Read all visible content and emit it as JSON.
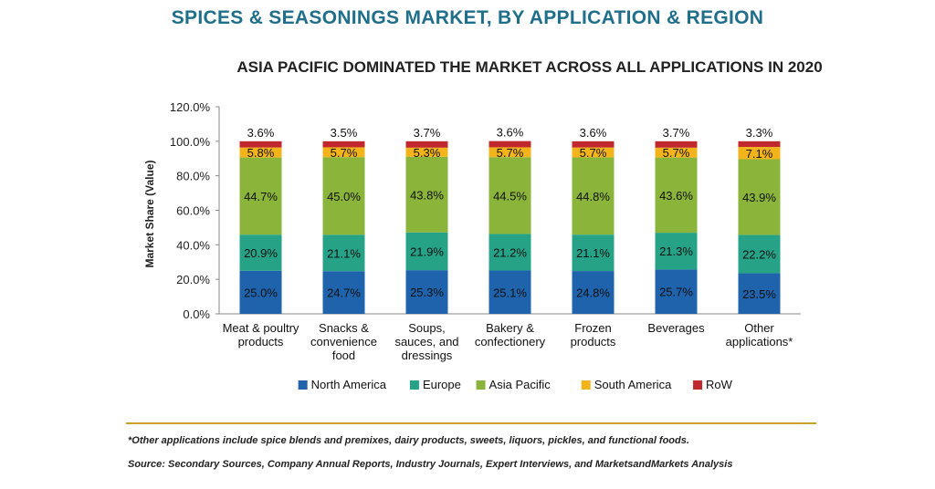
{
  "title": "SPICES & SEASONINGS MARKET, BY APPLICATION & REGION",
  "subtitle": "ASIA PACIFIC DOMINATED THE MARKET ACROSS ALL APPLICATIONS IN 2020",
  "footnote": "*Other applications include spice blends and premixes, dairy products, sweets, liquors, pickles, and functional foods.",
  "source": "Source: Secondary Sources, Company Annual Reports, Industry Journals, Expert Interviews, and MarketsandMarkets Analysis",
  "chart_data": {
    "type": "bar",
    "stacked": true,
    "ylabel": "Market Share (Value)",
    "xlabel": "",
    "ylim": [
      0,
      120
    ],
    "yticks": [
      "0.0%",
      "20.0%",
      "40.0%",
      "60.0%",
      "80.0%",
      "100.0%",
      "120.0%"
    ],
    "grid": false,
    "legend_position": "bottom",
    "categories": [
      [
        "Meat & poultry",
        "products"
      ],
      [
        "Snacks &",
        "convenience",
        "food"
      ],
      [
        "Soups,",
        "sauces, and",
        "dressings"
      ],
      [
        "Bakery &",
        "confectionery"
      ],
      [
        "Frozen",
        "products"
      ],
      [
        "Beverages"
      ],
      [
        "Other",
        "applications*"
      ]
    ],
    "series": [
      {
        "name": "North America",
        "color": "#1f63ad",
        "values": [
          25.0,
          24.7,
          25.3,
          25.1,
          24.8,
          25.7,
          23.5
        ],
        "labels": [
          "25.0%",
          "24.7%",
          "25.3%",
          "25.1%",
          "24.8%",
          "25.7%",
          "23.5%"
        ]
      },
      {
        "name": "Europe",
        "color": "#26a387",
        "values": [
          20.9,
          21.1,
          21.9,
          21.2,
          21.1,
          21.3,
          22.2
        ],
        "labels": [
          "20.9%",
          "21.1%",
          "21.9%",
          "21.2%",
          "21.1%",
          "21.3%",
          "22.2%"
        ]
      },
      {
        "name": "Asia Pacific",
        "color": "#8ab43a",
        "values": [
          44.7,
          45.0,
          43.8,
          44.5,
          44.8,
          43.6,
          43.9
        ],
        "labels": [
          "44.7%",
          "45.0%",
          "43.8%",
          "44.5%",
          "44.8%",
          "43.6%",
          "43.9%"
        ]
      },
      {
        "name": "South America",
        "color": "#f3b41b",
        "values": [
          5.8,
          5.7,
          5.3,
          5.7,
          5.7,
          5.7,
          7.1
        ],
        "labels": [
          "5.8%",
          "5.7%",
          "5.3%",
          "5.7%",
          "5.7%",
          "5.7%",
          "7.1%"
        ]
      },
      {
        "name": "RoW",
        "color": "#c0282d",
        "values": [
          3.6,
          3.5,
          3.7,
          3.6,
          3.6,
          3.7,
          3.3
        ],
        "labels": [
          "3.6%",
          "3.5%",
          "3.7%",
          "3.6%",
          "3.6%",
          "3.7%",
          "3.3%"
        ]
      }
    ]
  }
}
